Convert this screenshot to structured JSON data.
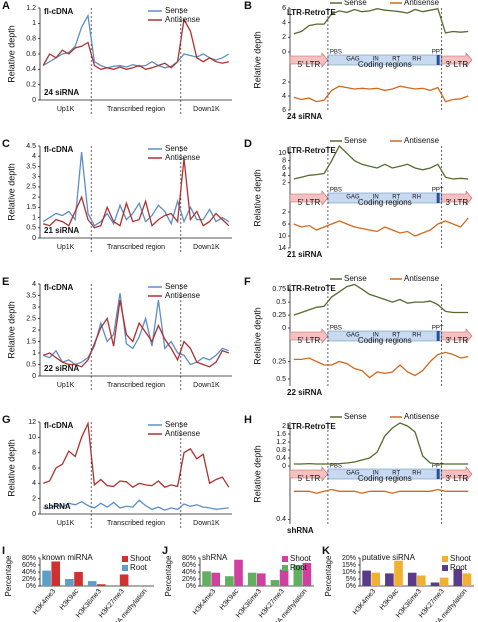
{
  "chart_data": [
    {
      "type": "line",
      "panel": "A",
      "label": "fl-cDNA",
      "sample": "24 siRNA",
      "ylabel": "Relative depth",
      "regions": [
        "Up1K",
        "Transcribed region",
        "Down1K"
      ],
      "ylim": [
        0,
        1.2
      ],
      "yticks": [
        0,
        0.2,
        0.4,
        0.6,
        0.8,
        1,
        1.2
      ],
      "series": [
        {
          "name": "Sense",
          "color": "#5b8ec7",
          "values": [
            0.45,
            0.5,
            0.55,
            0.6,
            0.62,
            0.7,
            0.95,
            1.1,
            0.5,
            0.45,
            0.42,
            0.44,
            0.45,
            0.43,
            0.46,
            0.44,
            0.45,
            0.5,
            0.45,
            0.42,
            0.44,
            0.5,
            0.6,
            0.58,
            0.56,
            0.6,
            0.55,
            0.52,
            0.55,
            0.6
          ]
        },
        {
          "name": "Antisense",
          "color": "#b03030",
          "values": [
            0.45,
            0.6,
            0.55,
            0.65,
            0.6,
            0.68,
            0.7,
            0.75,
            0.45,
            0.4,
            0.42,
            0.4,
            0.43,
            0.4,
            0.42,
            0.45,
            0.4,
            0.42,
            0.45,
            0.48,
            0.42,
            0.5,
            1.05,
            0.9,
            0.55,
            0.5,
            0.55,
            0.5,
            0.48,
            0.5
          ]
        }
      ]
    },
    {
      "type": "mirror",
      "panel": "B",
      "label": "LTR-RetroTE",
      "sample": "24 siRNA",
      "ylabel": "Relative depth",
      "regions": [
        "5' LTR",
        "Coding regions",
        "3' LTR"
      ],
      "features": [
        "PBS",
        "GAG",
        "IN",
        "RT",
        "RH",
        "PPT"
      ],
      "ylim": [
        0,
        6
      ],
      "yticks": [
        0,
        2,
        4,
        6
      ],
      "y2lim": [
        0,
        6
      ],
      "y2ticks": [
        2,
        4,
        6
      ],
      "series": [
        {
          "name": "Sense",
          "color": "#556b2f",
          "values": [
            2.5,
            2.8,
            3.6,
            3.8,
            3.8,
            5.2,
            5.6,
            5.4,
            5.8,
            5.5,
            5.6,
            5.9,
            5.7,
            5.6,
            5.5,
            5.3,
            5.8,
            5.5,
            5.7,
            5.9,
            2.6,
            2.8,
            2.7,
            2.8
          ]
        },
        {
          "name": "Antisense",
          "color": "#d2691e",
          "axis": "y2",
          "values": [
            4.2,
            4.5,
            4.3,
            4.8,
            4.6,
            3.2,
            2.6,
            2.8,
            3.0,
            2.9,
            3.0,
            2.9,
            3.2,
            3.0,
            2.6,
            2.8,
            3.0,
            2.9,
            3.2,
            2.8,
            4.8,
            4.5,
            4.4,
            4.0
          ]
        }
      ]
    },
    {
      "type": "line",
      "panel": "C",
      "label": "fl-cDNA",
      "sample": "21 siRNA",
      "ylabel": "Relative depth",
      "regions": [
        "Up1K",
        "Transcribed region",
        "Down1K"
      ],
      "ylim": [
        0,
        4.5
      ],
      "yticks": [
        0,
        0.5,
        1,
        1.5,
        2,
        2.5,
        3,
        3.5,
        4,
        4.5
      ],
      "series": [
        {
          "name": "Sense",
          "color": "#5b8ec7",
          "values": [
            0.8,
            1,
            1.2,
            1.1,
            1.3,
            0.9,
            4.2,
            1.2,
            0.6,
            0.8,
            1.2,
            0.7,
            1.6,
            0.9,
            1.2,
            1.7,
            0.8,
            1.1,
            1.6,
            1.3,
            0.7,
            1.8,
            0.8,
            1.5,
            0.9,
            0.9,
            1.4,
            0.8,
            1,
            0.8
          ]
        },
        {
          "name": "Antisense",
          "color": "#b03030",
          "values": [
            0.7,
            0.6,
            0.9,
            0.8,
            0.6,
            1.3,
            2,
            0.9,
            0.5,
            0.6,
            1.5,
            0.8,
            0.6,
            1.7,
            0.8,
            0.9,
            1.8,
            0.6,
            0.9,
            1.1,
            1.2,
            0.8,
            3.9,
            0.9,
            1.3,
            0.6,
            0.8,
            1.2,
            0.9,
            0.6
          ]
        }
      ]
    },
    {
      "type": "mirror",
      "panel": "D",
      "label": "LTR-RetroTE",
      "sample": "21 siRNA",
      "ylabel": "Relative depth",
      "regions": [
        "5' LTR",
        "Coding regions",
        "3' LTR"
      ],
      "features": [
        "PBS",
        "GAG",
        "IN",
        "RT",
        "RH",
        "PPT"
      ],
      "ylim": [
        0,
        12
      ],
      "yticks": [
        2,
        4,
        6,
        8,
        10
      ],
      "y2lim": [
        0,
        14
      ],
      "y2ticks": [
        2,
        6,
        10,
        14
      ],
      "series": [
        {
          "name": "Sense",
          "color": "#556b2f",
          "values": [
            3,
            3.5,
            4,
            4.2,
            4.5,
            8,
            12,
            10,
            8,
            7,
            6.5,
            6,
            7,
            6,
            6.5,
            7,
            6,
            5.5,
            6,
            7,
            3.5,
            3,
            3.2,
            3
          ]
        },
        {
          "name": "Antisense",
          "color": "#d2691e",
          "axis": "y2",
          "values": [
            6,
            7,
            6.5,
            8,
            7,
            6,
            5,
            6,
            7,
            7.5,
            8,
            8.5,
            7,
            8,
            9,
            8.5,
            10,
            9,
            8,
            6,
            5,
            6,
            7,
            4
          ]
        }
      ]
    },
    {
      "type": "line",
      "panel": "E",
      "label": "fl-cDNA",
      "sample": "22 siRNA",
      "ylabel": "Relative depth",
      "regions": [
        "Up1K",
        "Transcribed region",
        "Down1K"
      ],
      "ylim": [
        0,
        4
      ],
      "yticks": [
        0,
        0.5,
        1,
        1.5,
        2,
        2.5,
        3,
        3.5,
        4
      ],
      "series": [
        {
          "name": "Sense",
          "color": "#5b8ec7",
          "values": [
            0.9,
            0.8,
            1.1,
            0.6,
            0.7,
            0.5,
            0.6,
            0.8,
            1.3,
            2.3,
            1.5,
            1.8,
            3.6,
            1.4,
            1.2,
            1.7,
            2.5,
            1.3,
            3.3,
            1.2,
            1.5,
            1.0,
            0.9,
            0.5,
            0.6,
            0.8,
            0.7,
            0.9,
            1.2,
            1.1
          ]
        },
        {
          "name": "Antisense",
          "color": "#b03030",
          "values": [
            0.9,
            1,
            0.8,
            0.6,
            0.5,
            0.5,
            0.4,
            0.7,
            1.4,
            2.1,
            2.5,
            1.3,
            3.3,
            1.8,
            1.5,
            2.3,
            1.9,
            1.5,
            2.2,
            1.6,
            1.2,
            0.7,
            1.5,
            1.2,
            0.6,
            0.5,
            0.4,
            0.6,
            1.1,
            1.0
          ]
        }
      ]
    },
    {
      "type": "mirror",
      "panel": "F",
      "label": "LTR-RetroTE",
      "sample": "22 siRNA",
      "ylabel": "Relative depth",
      "regions": [
        "5' LTR",
        "Coding regions",
        "3' LTR"
      ],
      "features": [
        "PBS",
        "GAG",
        "IN",
        "RT",
        "RH",
        "PPT"
      ],
      "ylim": [
        0,
        0.85
      ],
      "yticks": [
        0,
        0.25,
        0.5,
        0.75
      ],
      "y2lim": [
        0,
        0.6
      ],
      "y2ticks": [
        0.25,
        0.5
      ],
      "series": [
        {
          "name": "Sense",
          "color": "#556b2f",
          "values": [
            0.25,
            0.3,
            0.35,
            0.4,
            0.42,
            0.6,
            0.7,
            0.8,
            0.84,
            0.75,
            0.65,
            0.6,
            0.55,
            0.5,
            0.55,
            0.48,
            0.5,
            0.5,
            0.52,
            0.45,
            0.32,
            0.3,
            0.3,
            0.3
          ]
        },
        {
          "name": "Antisense",
          "color": "#d2691e",
          "axis": "y2",
          "values": [
            0.22,
            0.22,
            0.2,
            0.25,
            0.3,
            0.3,
            0.25,
            0.28,
            0.35,
            0.38,
            0.48,
            0.4,
            0.42,
            0.4,
            0.3,
            0.4,
            0.45,
            0.38,
            0.25,
            0.15,
            0.12,
            0.15,
            0.2,
            0.18
          ]
        }
      ]
    },
    {
      "type": "line",
      "panel": "G",
      "label": "fl-cDNA",
      "sample": "shRNA",
      "ylabel": "Relative depth",
      "regions": [
        "Up1K",
        "Transcribed region",
        "Down1K"
      ],
      "ylim": [
        0,
        12
      ],
      "yticks": [
        0,
        2,
        4,
        6,
        8,
        10,
        12
      ],
      "series": [
        {
          "name": "Sense",
          "color": "#5b8ec7",
          "values": [
            0.8,
            0.7,
            1.2,
            0.9,
            1.4,
            1.2,
            1.6,
            1.1,
            0.8,
            1.4,
            0.9,
            1.5,
            0.8,
            1.0,
            0.9,
            1.8,
            1.1,
            0.6,
            0.9,
            0.5,
            0.8,
            0.6,
            1.3,
            1.0,
            1.2,
            0.9,
            0.8,
            0.6,
            0.7,
            0.8
          ]
        },
        {
          "name": "Antisense",
          "color": "#b03030",
          "values": [
            4,
            4.3,
            6,
            6.5,
            8.2,
            7.5,
            10,
            11.8,
            3.8,
            4.5,
            3.7,
            3.6,
            4.3,
            4.2,
            3.5,
            4,
            3.8,
            3.7,
            4.3,
            3.5,
            3.8,
            3.6,
            8,
            8.5,
            7.2,
            7.8,
            4,
            4.5,
            4.8,
            3.5
          ]
        }
      ]
    },
    {
      "type": "mirror",
      "panel": "H",
      "label": "LTR-RetroTE",
      "sample": "shRNA",
      "ylabel": "Relative depth",
      "regions": [
        "5' LTR",
        "Coding regions",
        "3' LTR"
      ],
      "features": [
        "PBS",
        "GAG",
        "IN",
        "RT",
        "RH",
        "PPT"
      ],
      "ylim": [
        0,
        2.2
      ],
      "yticks": [
        0,
        0.4,
        0.8,
        1.2,
        1.6,
        2
      ],
      "y2lim": [
        0,
        0.45
      ],
      "y2ticks": [
        0.4
      ],
      "series": [
        {
          "name": "Sense",
          "color": "#556b2f",
          "values": [
            0.1,
            0.1,
            0.12,
            0.1,
            0.1,
            0.1,
            0.12,
            0.15,
            0.2,
            0.3,
            0.4,
            0.7,
            1.5,
            1.9,
            2.15,
            2.0,
            1.7,
            0.5,
            0.15,
            0.1,
            0.1,
            0.1,
            0.1,
            0.1
          ]
        },
        {
          "name": "Antisense",
          "color": "#d2691e",
          "axis": "y2",
          "values": [
            0.1,
            0.1,
            0.1,
            0.12,
            0.1,
            0.08,
            0.1,
            0.1,
            0.1,
            0.12,
            0.1,
            0.1,
            0.1,
            0.12,
            0.1,
            0.1,
            0.1,
            0.1,
            0.1,
            0.08,
            0.1,
            0.1,
            0.1,
            0.1
          ]
        }
      ]
    },
    {
      "type": "bar",
      "panel": "I",
      "title": "known miRNA",
      "ylabel": "Percentage",
      "categories": [
        "H3K4me3",
        "H3K9ac",
        "H3K36me3",
        "H3K27me3",
        "DNA methylation"
      ],
      "ylim": [
        0,
        80
      ],
      "yticks": [
        {
          "value": 0,
          "label": "0%"
        },
        {
          "value": 20,
          "label": "20%"
        },
        {
          "value": 40,
          "label": "40%"
        },
        {
          "value": 60,
          "label": "60%"
        },
        {
          "value": 80,
          "label": "80%"
        }
      ],
      "series": [
        {
          "name": "Shoot",
          "color": "#d03030",
          "values": [
            70,
            40,
            5,
            33,
            0
          ]
        },
        {
          "name": "Root",
          "color": "#5aa0c8",
          "values": [
            44,
            20,
            14,
            0,
            0
          ]
        }
      ]
    },
    {
      "type": "bar",
      "panel": "J",
      "title": "shRNA",
      "ylabel": "Percentage",
      "categories": [
        "H3K4me3",
        "H3K9ac",
        "H3K36me3",
        "H3K27me3",
        "DNA methylation"
      ],
      "ylim": [
        0,
        80
      ],
      "yticks": [
        {
          "value": 0,
          "label": "0%"
        },
        {
          "value": 20,
          "label": "20%"
        },
        {
          "value": 40,
          "label": "40%"
        },
        {
          "value": 60,
          "label": "60%"
        },
        {
          "value": 80,
          "label": "80%"
        }
      ],
      "series": [
        {
          "name": "Shoot",
          "color": "#d040a0",
          "values": [
            38,
            75,
            36,
            47,
            66
          ]
        },
        {
          "name": "Root",
          "color": "#60b060",
          "values": [
            42,
            28,
            38,
            17,
            60
          ]
        }
      ]
    },
    {
      "type": "bar",
      "panel": "K",
      "title": "putative siRNA",
      "ylabel": "Percentage",
      "categories": [
        "H3K4me3",
        "H3K9ac",
        "H3K36me3",
        "H3K27me3",
        "DNA methylation"
      ],
      "ylim": [
        0,
        20
      ],
      "yticks": [
        {
          "value": 0,
          "label": "0%"
        },
        {
          "value": 5,
          "label": "5%"
        },
        {
          "value": 10,
          "label": "10%"
        },
        {
          "value": 15,
          "label": "15%"
        },
        {
          "value": 20,
          "label": "20%"
        }
      ],
      "series": [
        {
          "name": "Shoot",
          "color": "#f0b030",
          "values": [
            9.5,
            18,
            7.5,
            6,
            9
          ]
        },
        {
          "name": "Root",
          "color": "#5a3a8a",
          "values": [
            11,
            9,
            9.5,
            2.5,
            12
          ]
        }
      ]
    }
  ]
}
